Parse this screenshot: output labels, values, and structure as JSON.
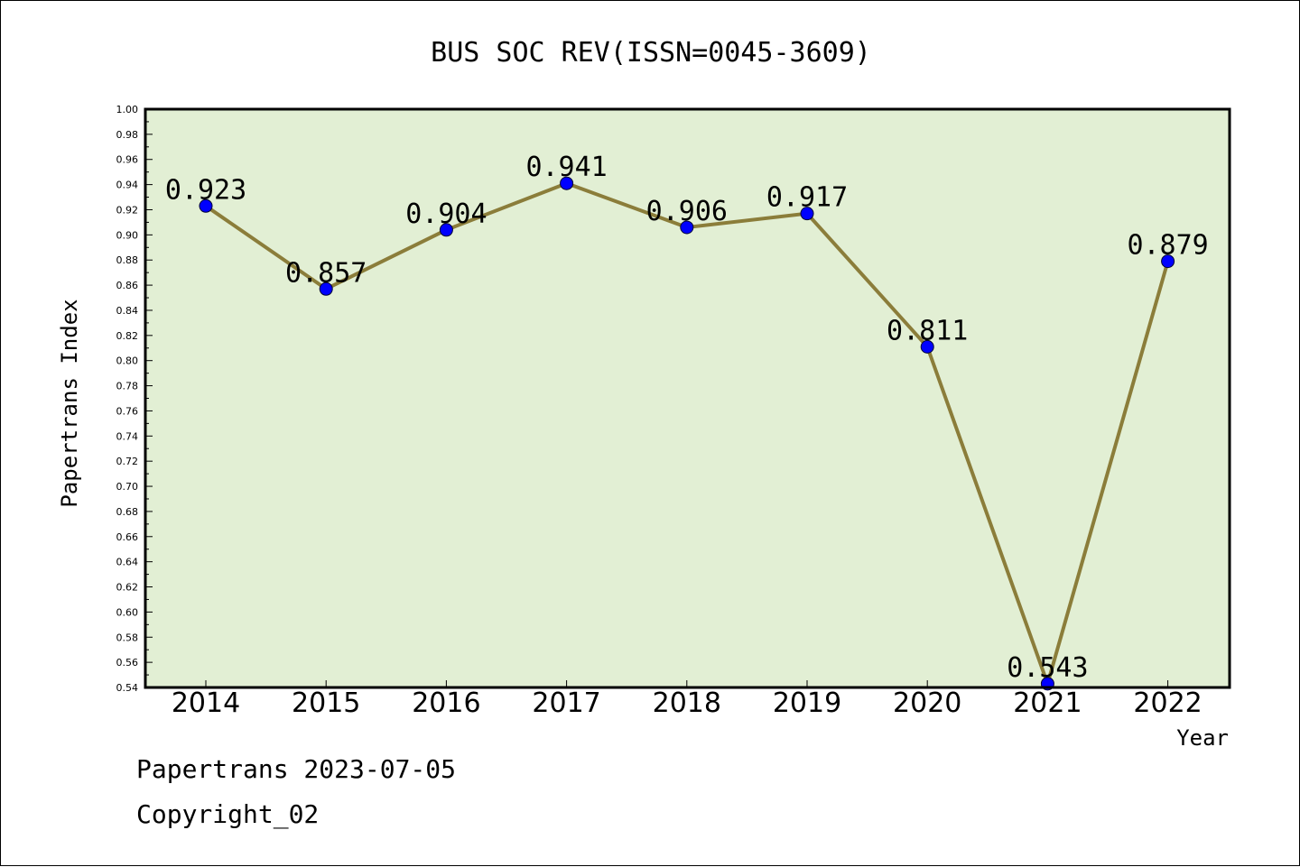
{
  "chart_data": {
    "type": "line",
    "title": "BUS SOC REV(ISSN=0045-3609)",
    "xlabel": "Year",
    "ylabel": "Papertrans Index",
    "categories": [
      "2014",
      "2015",
      "2016",
      "2017",
      "2018",
      "2019",
      "2020",
      "2021",
      "2022"
    ],
    "series": [
      {
        "values": [
          0.923,
          0.857,
          0.904,
          0.941,
          0.906,
          0.917,
          0.811,
          0.543,
          0.879
        ],
        "labels": [
          "0.923",
          "0.857",
          "0.904",
          "0.941",
          "0.906",
          "0.917",
          "0.811",
          "0.543",
          "0.879"
        ],
        "line_color": "#8b7d3a",
        "marker_color": "#0000ff"
      }
    ],
    "ylim": [
      0.54,
      1.0
    ],
    "yticks": [
      "0.54",
      "0.56",
      "0.58",
      "0.60",
      "0.62",
      "0.64",
      "0.66",
      "0.68",
      "0.70",
      "0.72",
      "0.74",
      "0.76",
      "0.78",
      "0.80",
      "0.82",
      "0.84",
      "0.86",
      "0.88",
      "0.90",
      "0.92",
      "0.94",
      "0.96",
      "0.98",
      "1.00"
    ],
    "plot_background": "#e2efd4",
    "grid": false
  },
  "footer": {
    "line1": "Papertrans 2023-07-05",
    "line2": "Copyright_02"
  }
}
